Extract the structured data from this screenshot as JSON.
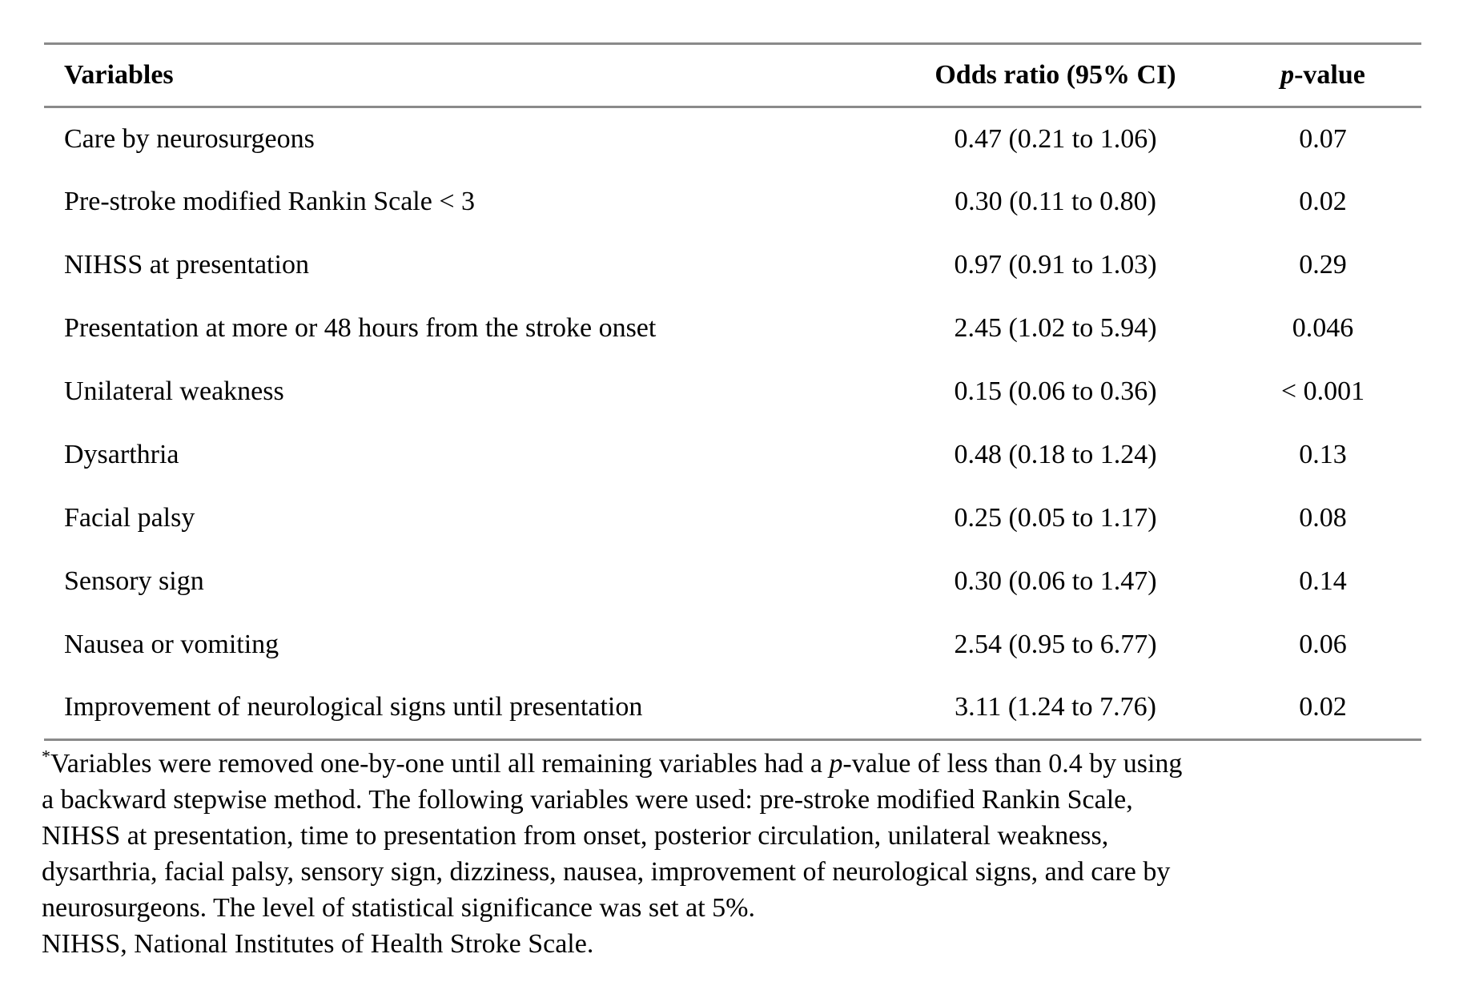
{
  "table": {
    "columns": {
      "variables": "Variables",
      "odds_ratio": "Odds ratio (95% CI)",
      "p_italic": "p",
      "p_rest": "-value"
    },
    "rows": [
      {
        "variable": "Care by neurosurgeons",
        "odds_ratio": "0.47 (0.21 to 1.06)",
        "p_value": "0.07"
      },
      {
        "variable": "Pre-stroke modified Rankin Scale < 3",
        "odds_ratio": "0.30 (0.11 to 0.80)",
        "p_value": "0.02"
      },
      {
        "variable": "NIHSS at presentation",
        "odds_ratio": "0.97 (0.91 to 1.03)",
        "p_value": "0.29"
      },
      {
        "variable": "Presentation at more or 48 hours from the stroke onset",
        "odds_ratio": "2.45 (1.02 to 5.94)",
        "p_value": "0.046"
      },
      {
        "variable": "Unilateral weakness",
        "odds_ratio": "0.15 (0.06 to 0.36)",
        "p_value": "< 0.001"
      },
      {
        "variable": "Dysarthria",
        "odds_ratio": "0.48 (0.18 to 1.24)",
        "p_value": "0.13"
      },
      {
        "variable": "Facial palsy",
        "odds_ratio": "0.25 (0.05 to 1.17)",
        "p_value": "0.08"
      },
      {
        "variable": "Sensory sign",
        "odds_ratio": "0.30 (0.06 to 1.47)",
        "p_value": "0.14"
      },
      {
        "variable": "Nausea or vomiting",
        "odds_ratio": "2.54 (0.95 to 6.77)",
        "p_value": "0.06"
      },
      {
        "variable": "Improvement of neurological signs until presentation",
        "odds_ratio": "3.11 (1.24 to 7.76)",
        "p_value": "0.02"
      }
    ]
  },
  "footnote": {
    "marker": "*",
    "line1_pre": "Variables were removed one-by-one until all remaining variables had a ",
    "line1_italic": "p",
    "line1_post": "-value of less than 0.4 by using",
    "line2": "a backward stepwise method. The following variables were used: pre-stroke modified Rankin Scale,",
    "line3": "NIHSS at presentation, time to presentation from onset, posterior circulation, unilateral weakness,",
    "line4": "dysarthria, facial palsy, sensory sign, dizziness, nausea, improvement of neurological signs, and care by",
    "line5": "neurosurgeons. The level of statistical significance was set at 5%.",
    "line6": "NIHSS, National Institutes of Health Stroke Scale."
  },
  "colors": {
    "rule": "#8a8a8a",
    "text": "#000000",
    "background": "#ffffff"
  }
}
